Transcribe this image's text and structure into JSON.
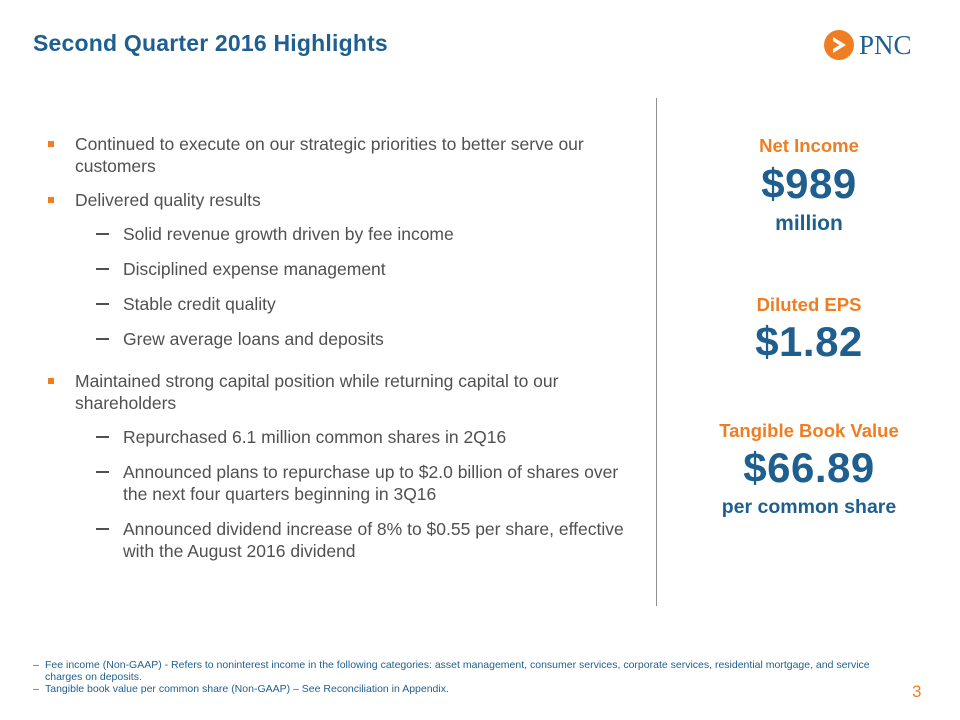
{
  "slide": {
    "title": "Second Quarter 2016 Highlights",
    "logo_text": "PNC",
    "page_number": "3"
  },
  "bullets": [
    {
      "text": "Continued to execute on our strategic priorities to better serve our customers",
      "sub": []
    },
    {
      "text": "Delivered quality results",
      "sub": [
        "Solid revenue growth driven by fee income",
        "Disciplined expense management",
        "Stable credit quality",
        "Grew average loans and deposits"
      ]
    },
    {
      "text": "Maintained strong capital position while returning capital to our shareholders",
      "sub": [
        "Repurchased 6.1 million common shares in 2Q16",
        "Announced plans to repurchase up to $2.0 billion of shares over the next four quarters beginning in 3Q16",
        "Announced dividend increase of 8% to $0.55 per share, effective with the August 2016 dividend"
      ]
    }
  ],
  "metrics": {
    "net_income": {
      "label": "Net Income",
      "value": "$989",
      "unit": "million"
    },
    "diluted_eps": {
      "label": "Diluted EPS",
      "value": "$1.82"
    },
    "tangible_book_value": {
      "label": "Tangible Book Value",
      "value": "$66.89",
      "unit": "per common share"
    }
  },
  "footnotes": [
    "Fee income (Non-GAAP) - Refers to noninterest income in the following categories: asset management, consumer services, corporate services, residential mortgage, and service charges on deposits.",
    "Tangible book value per common share (Non-GAAP) – See Reconciliation in Appendix."
  ],
  "colors": {
    "brand_blue": "#1f5f8f",
    "brand_orange": "#ef7e22",
    "body_text": "#505050"
  },
  "icons": {
    "logo": "pnc-logo-icon",
    "bullet": "square-bullet-icon",
    "sub_bullet": "dash-bullet-icon"
  }
}
